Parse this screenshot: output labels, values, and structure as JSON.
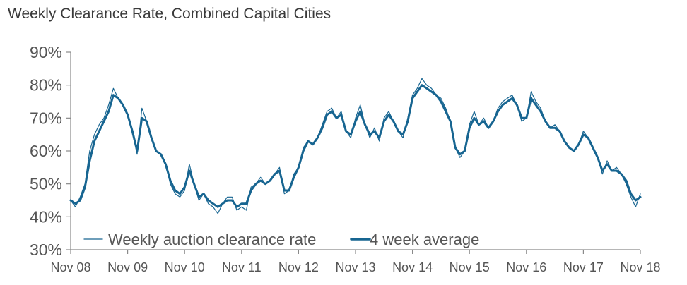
{
  "colors": {
    "series": "#176591",
    "axis": "#8a8a8a",
    "text": "#555555"
  },
  "chart_data": {
    "type": "line",
    "title": "Weekly Clearance Rate, Combined Capital Cities",
    "xlabel": "",
    "ylabel": "",
    "ylim": [
      0.3,
      0.9
    ],
    "xlim": [
      "2008-11",
      "2018-11"
    ],
    "grid": false,
    "legend": "bottom-left",
    "y_ticks": [
      "30%",
      "40%",
      "50%",
      "60%",
      "70%",
      "80%",
      "90%"
    ],
    "x_ticks": [
      "Nov 08",
      "Nov 09",
      "Nov 10",
      "Nov 11",
      "Nov 12",
      "Nov 13",
      "Nov 14",
      "Nov 15",
      "Nov 16",
      "Nov 17",
      "Nov 18"
    ],
    "series": [
      {
        "name": "Weekly auction clearance rate",
        "style": "thin",
        "points": [
          [
            "2008-11",
            0.45
          ],
          [
            "2008-12",
            0.43
          ],
          [
            "2009-01",
            0.46
          ],
          [
            "2009-02",
            0.5
          ],
          [
            "2009-03",
            0.6
          ],
          [
            "2009-04",
            0.65
          ],
          [
            "2009-05",
            0.68
          ],
          [
            "2009-06",
            0.7
          ],
          [
            "2009-07",
            0.74
          ],
          [
            "2009-08",
            0.79
          ],
          [
            "2009-09",
            0.76
          ],
          [
            "2009-10",
            0.74
          ],
          [
            "2009-11",
            0.71
          ],
          [
            "2009-12",
            0.66
          ],
          [
            "2010-01",
            0.59
          ],
          [
            "2010-02",
            0.73
          ],
          [
            "2010-03",
            0.69
          ],
          [
            "2010-04",
            0.64
          ],
          [
            "2010-05",
            0.6
          ],
          [
            "2010-06",
            0.59
          ],
          [
            "2010-07",
            0.56
          ],
          [
            "2010-08",
            0.5
          ],
          [
            "2010-09",
            0.47
          ],
          [
            "2010-10",
            0.46
          ],
          [
            "2010-11",
            0.48
          ],
          [
            "2010-12",
            0.56
          ],
          [
            "2011-01",
            0.5
          ],
          [
            "2011-02",
            0.45
          ],
          [
            "2011-03",
            0.47
          ],
          [
            "2011-04",
            0.44
          ],
          [
            "2011-05",
            0.43
          ],
          [
            "2011-06",
            0.41
          ],
          [
            "2011-07",
            0.44
          ],
          [
            "2011-08",
            0.46
          ],
          [
            "2011-09",
            0.46
          ],
          [
            "2011-10",
            0.42
          ],
          [
            "2011-11",
            0.43
          ],
          [
            "2011-12",
            0.42
          ],
          [
            "2012-01",
            0.49
          ],
          [
            "2012-02",
            0.5
          ],
          [
            "2012-03",
            0.52
          ],
          [
            "2012-04",
            0.5
          ],
          [
            "2012-05",
            0.51
          ],
          [
            "2012-06",
            0.53
          ],
          [
            "2012-07",
            0.55
          ],
          [
            "2012-08",
            0.47
          ],
          [
            "2012-09",
            0.48
          ],
          [
            "2012-10",
            0.53
          ],
          [
            "2012-11",
            0.55
          ],
          [
            "2012-12",
            0.61
          ],
          [
            "2013-01",
            0.63
          ],
          [
            "2013-02",
            0.62
          ],
          [
            "2013-03",
            0.64
          ],
          [
            "2013-04",
            0.68
          ],
          [
            "2013-05",
            0.72
          ],
          [
            "2013-06",
            0.73
          ],
          [
            "2013-07",
            0.7
          ],
          [
            "2013-08",
            0.72
          ],
          [
            "2013-09",
            0.66
          ],
          [
            "2013-10",
            0.64
          ],
          [
            "2013-11",
            0.7
          ],
          [
            "2013-12",
            0.74
          ],
          [
            "2014-01",
            0.68
          ],
          [
            "2014-02",
            0.64
          ],
          [
            "2014-03",
            0.67
          ],
          [
            "2014-04",
            0.63
          ],
          [
            "2014-05",
            0.7
          ],
          [
            "2014-06",
            0.72
          ],
          [
            "2014-07",
            0.69
          ],
          [
            "2014-08",
            0.66
          ],
          [
            "2014-09",
            0.64
          ],
          [
            "2014-10",
            0.7
          ],
          [
            "2014-11",
            0.77
          ],
          [
            "2014-12",
            0.79
          ],
          [
            "2015-01",
            0.82
          ],
          [
            "2015-02",
            0.8
          ],
          [
            "2015-03",
            0.79
          ],
          [
            "2015-04",
            0.77
          ],
          [
            "2015-05",
            0.76
          ],
          [
            "2015-06",
            0.73
          ],
          [
            "2015-07",
            0.69
          ],
          [
            "2015-08",
            0.61
          ],
          [
            "2015-09",
            0.58
          ],
          [
            "2015-10",
            0.6
          ],
          [
            "2015-11",
            0.68
          ],
          [
            "2015-12",
            0.72
          ],
          [
            "2016-01",
            0.68
          ],
          [
            "2016-02",
            0.7
          ],
          [
            "2016-03",
            0.67
          ],
          [
            "2016-04",
            0.69
          ],
          [
            "2016-05",
            0.73
          ],
          [
            "2016-06",
            0.75
          ],
          [
            "2016-07",
            0.76
          ],
          [
            "2016-08",
            0.77
          ],
          [
            "2016-09",
            0.74
          ],
          [
            "2016-10",
            0.69
          ],
          [
            "2016-11",
            0.7
          ],
          [
            "2016-12",
            0.78
          ],
          [
            "2017-01",
            0.75
          ],
          [
            "2017-02",
            0.73
          ],
          [
            "2017-03",
            0.69
          ],
          [
            "2017-04",
            0.67
          ],
          [
            "2017-05",
            0.68
          ],
          [
            "2017-06",
            0.66
          ],
          [
            "2017-07",
            0.63
          ],
          [
            "2017-08",
            0.61
          ],
          [
            "2017-09",
            0.6
          ],
          [
            "2017-10",
            0.62
          ],
          [
            "2017-11",
            0.66
          ],
          [
            "2017-12",
            0.64
          ],
          [
            "2018-01",
            0.61
          ],
          [
            "2018-02",
            0.58
          ],
          [
            "2018-03",
            0.53
          ],
          [
            "2018-04",
            0.57
          ],
          [
            "2018-05",
            0.54
          ],
          [
            "2018-06",
            0.55
          ],
          [
            "2018-07",
            0.53
          ],
          [
            "2018-08",
            0.5
          ],
          [
            "2018-09",
            0.46
          ],
          [
            "2018-10",
            0.43
          ],
          [
            "2018-11",
            0.47
          ]
        ]
      },
      {
        "name": "4 week average",
        "style": "thick",
        "points": [
          [
            "2008-11",
            0.45
          ],
          [
            "2008-12",
            0.44
          ],
          [
            "2009-01",
            0.45
          ],
          [
            "2009-02",
            0.49
          ],
          [
            "2009-03",
            0.57
          ],
          [
            "2009-04",
            0.63
          ],
          [
            "2009-05",
            0.66
          ],
          [
            "2009-06",
            0.69
          ],
          [
            "2009-07",
            0.72
          ],
          [
            "2009-08",
            0.77
          ],
          [
            "2009-09",
            0.76
          ],
          [
            "2009-10",
            0.74
          ],
          [
            "2009-11",
            0.71
          ],
          [
            "2009-12",
            0.66
          ],
          [
            "2010-01",
            0.6
          ],
          [
            "2010-02",
            0.7
          ],
          [
            "2010-03",
            0.69
          ],
          [
            "2010-04",
            0.64
          ],
          [
            "2010-05",
            0.6
          ],
          [
            "2010-06",
            0.59
          ],
          [
            "2010-07",
            0.56
          ],
          [
            "2010-08",
            0.51
          ],
          [
            "2010-09",
            0.48
          ],
          [
            "2010-10",
            0.47
          ],
          [
            "2010-11",
            0.49
          ],
          [
            "2010-12",
            0.54
          ],
          [
            "2011-01",
            0.5
          ],
          [
            "2011-02",
            0.46
          ],
          [
            "2011-03",
            0.47
          ],
          [
            "2011-04",
            0.45
          ],
          [
            "2011-05",
            0.44
          ],
          [
            "2011-06",
            0.43
          ],
          [
            "2011-07",
            0.44
          ],
          [
            "2011-08",
            0.45
          ],
          [
            "2011-09",
            0.45
          ],
          [
            "2011-10",
            0.43
          ],
          [
            "2011-11",
            0.44
          ],
          [
            "2011-12",
            0.44
          ],
          [
            "2012-01",
            0.48
          ],
          [
            "2012-02",
            0.5
          ],
          [
            "2012-03",
            0.51
          ],
          [
            "2012-04",
            0.5
          ],
          [
            "2012-05",
            0.51
          ],
          [
            "2012-06",
            0.53
          ],
          [
            "2012-07",
            0.54
          ],
          [
            "2012-08",
            0.48
          ],
          [
            "2012-09",
            0.48
          ],
          [
            "2012-10",
            0.52
          ],
          [
            "2012-11",
            0.55
          ],
          [
            "2012-12",
            0.6
          ],
          [
            "2013-01",
            0.63
          ],
          [
            "2013-02",
            0.62
          ],
          [
            "2013-03",
            0.64
          ],
          [
            "2013-04",
            0.67
          ],
          [
            "2013-05",
            0.71
          ],
          [
            "2013-06",
            0.72
          ],
          [
            "2013-07",
            0.7
          ],
          [
            "2013-08",
            0.71
          ],
          [
            "2013-09",
            0.66
          ],
          [
            "2013-10",
            0.65
          ],
          [
            "2013-11",
            0.69
          ],
          [
            "2013-12",
            0.72
          ],
          [
            "2014-01",
            0.68
          ],
          [
            "2014-02",
            0.65
          ],
          [
            "2014-03",
            0.66
          ],
          [
            "2014-04",
            0.64
          ],
          [
            "2014-05",
            0.69
          ],
          [
            "2014-06",
            0.71
          ],
          [
            "2014-07",
            0.69
          ],
          [
            "2014-08",
            0.66
          ],
          [
            "2014-09",
            0.65
          ],
          [
            "2014-10",
            0.69
          ],
          [
            "2014-11",
            0.76
          ],
          [
            "2014-12",
            0.78
          ],
          [
            "2015-01",
            0.8
          ],
          [
            "2015-02",
            0.79
          ],
          [
            "2015-03",
            0.78
          ],
          [
            "2015-04",
            0.77
          ],
          [
            "2015-05",
            0.75
          ],
          [
            "2015-06",
            0.72
          ],
          [
            "2015-07",
            0.69
          ],
          [
            "2015-08",
            0.61
          ],
          [
            "2015-09",
            0.59
          ],
          [
            "2015-10",
            0.6
          ],
          [
            "2015-11",
            0.67
          ],
          [
            "2015-12",
            0.7
          ],
          [
            "2016-01",
            0.68
          ],
          [
            "2016-02",
            0.69
          ],
          [
            "2016-03",
            0.67
          ],
          [
            "2016-04",
            0.69
          ],
          [
            "2016-05",
            0.72
          ],
          [
            "2016-06",
            0.74
          ],
          [
            "2016-07",
            0.75
          ],
          [
            "2016-08",
            0.76
          ],
          [
            "2016-09",
            0.74
          ],
          [
            "2016-10",
            0.7
          ],
          [
            "2016-11",
            0.7
          ],
          [
            "2016-12",
            0.76
          ],
          [
            "2017-01",
            0.74
          ],
          [
            "2017-02",
            0.72
          ],
          [
            "2017-03",
            0.69
          ],
          [
            "2017-04",
            0.67
          ],
          [
            "2017-05",
            0.67
          ],
          [
            "2017-06",
            0.66
          ],
          [
            "2017-07",
            0.63
          ],
          [
            "2017-08",
            0.61
          ],
          [
            "2017-09",
            0.6
          ],
          [
            "2017-10",
            0.62
          ],
          [
            "2017-11",
            0.65
          ],
          [
            "2017-12",
            0.64
          ],
          [
            "2018-01",
            0.61
          ],
          [
            "2018-02",
            0.58
          ],
          [
            "2018-03",
            0.54
          ],
          [
            "2018-04",
            0.56
          ],
          [
            "2018-05",
            0.54
          ],
          [
            "2018-06",
            0.54
          ],
          [
            "2018-07",
            0.53
          ],
          [
            "2018-08",
            0.51
          ],
          [
            "2018-09",
            0.47
          ],
          [
            "2018-10",
            0.45
          ],
          [
            "2018-11",
            0.46
          ]
        ]
      }
    ]
  }
}
